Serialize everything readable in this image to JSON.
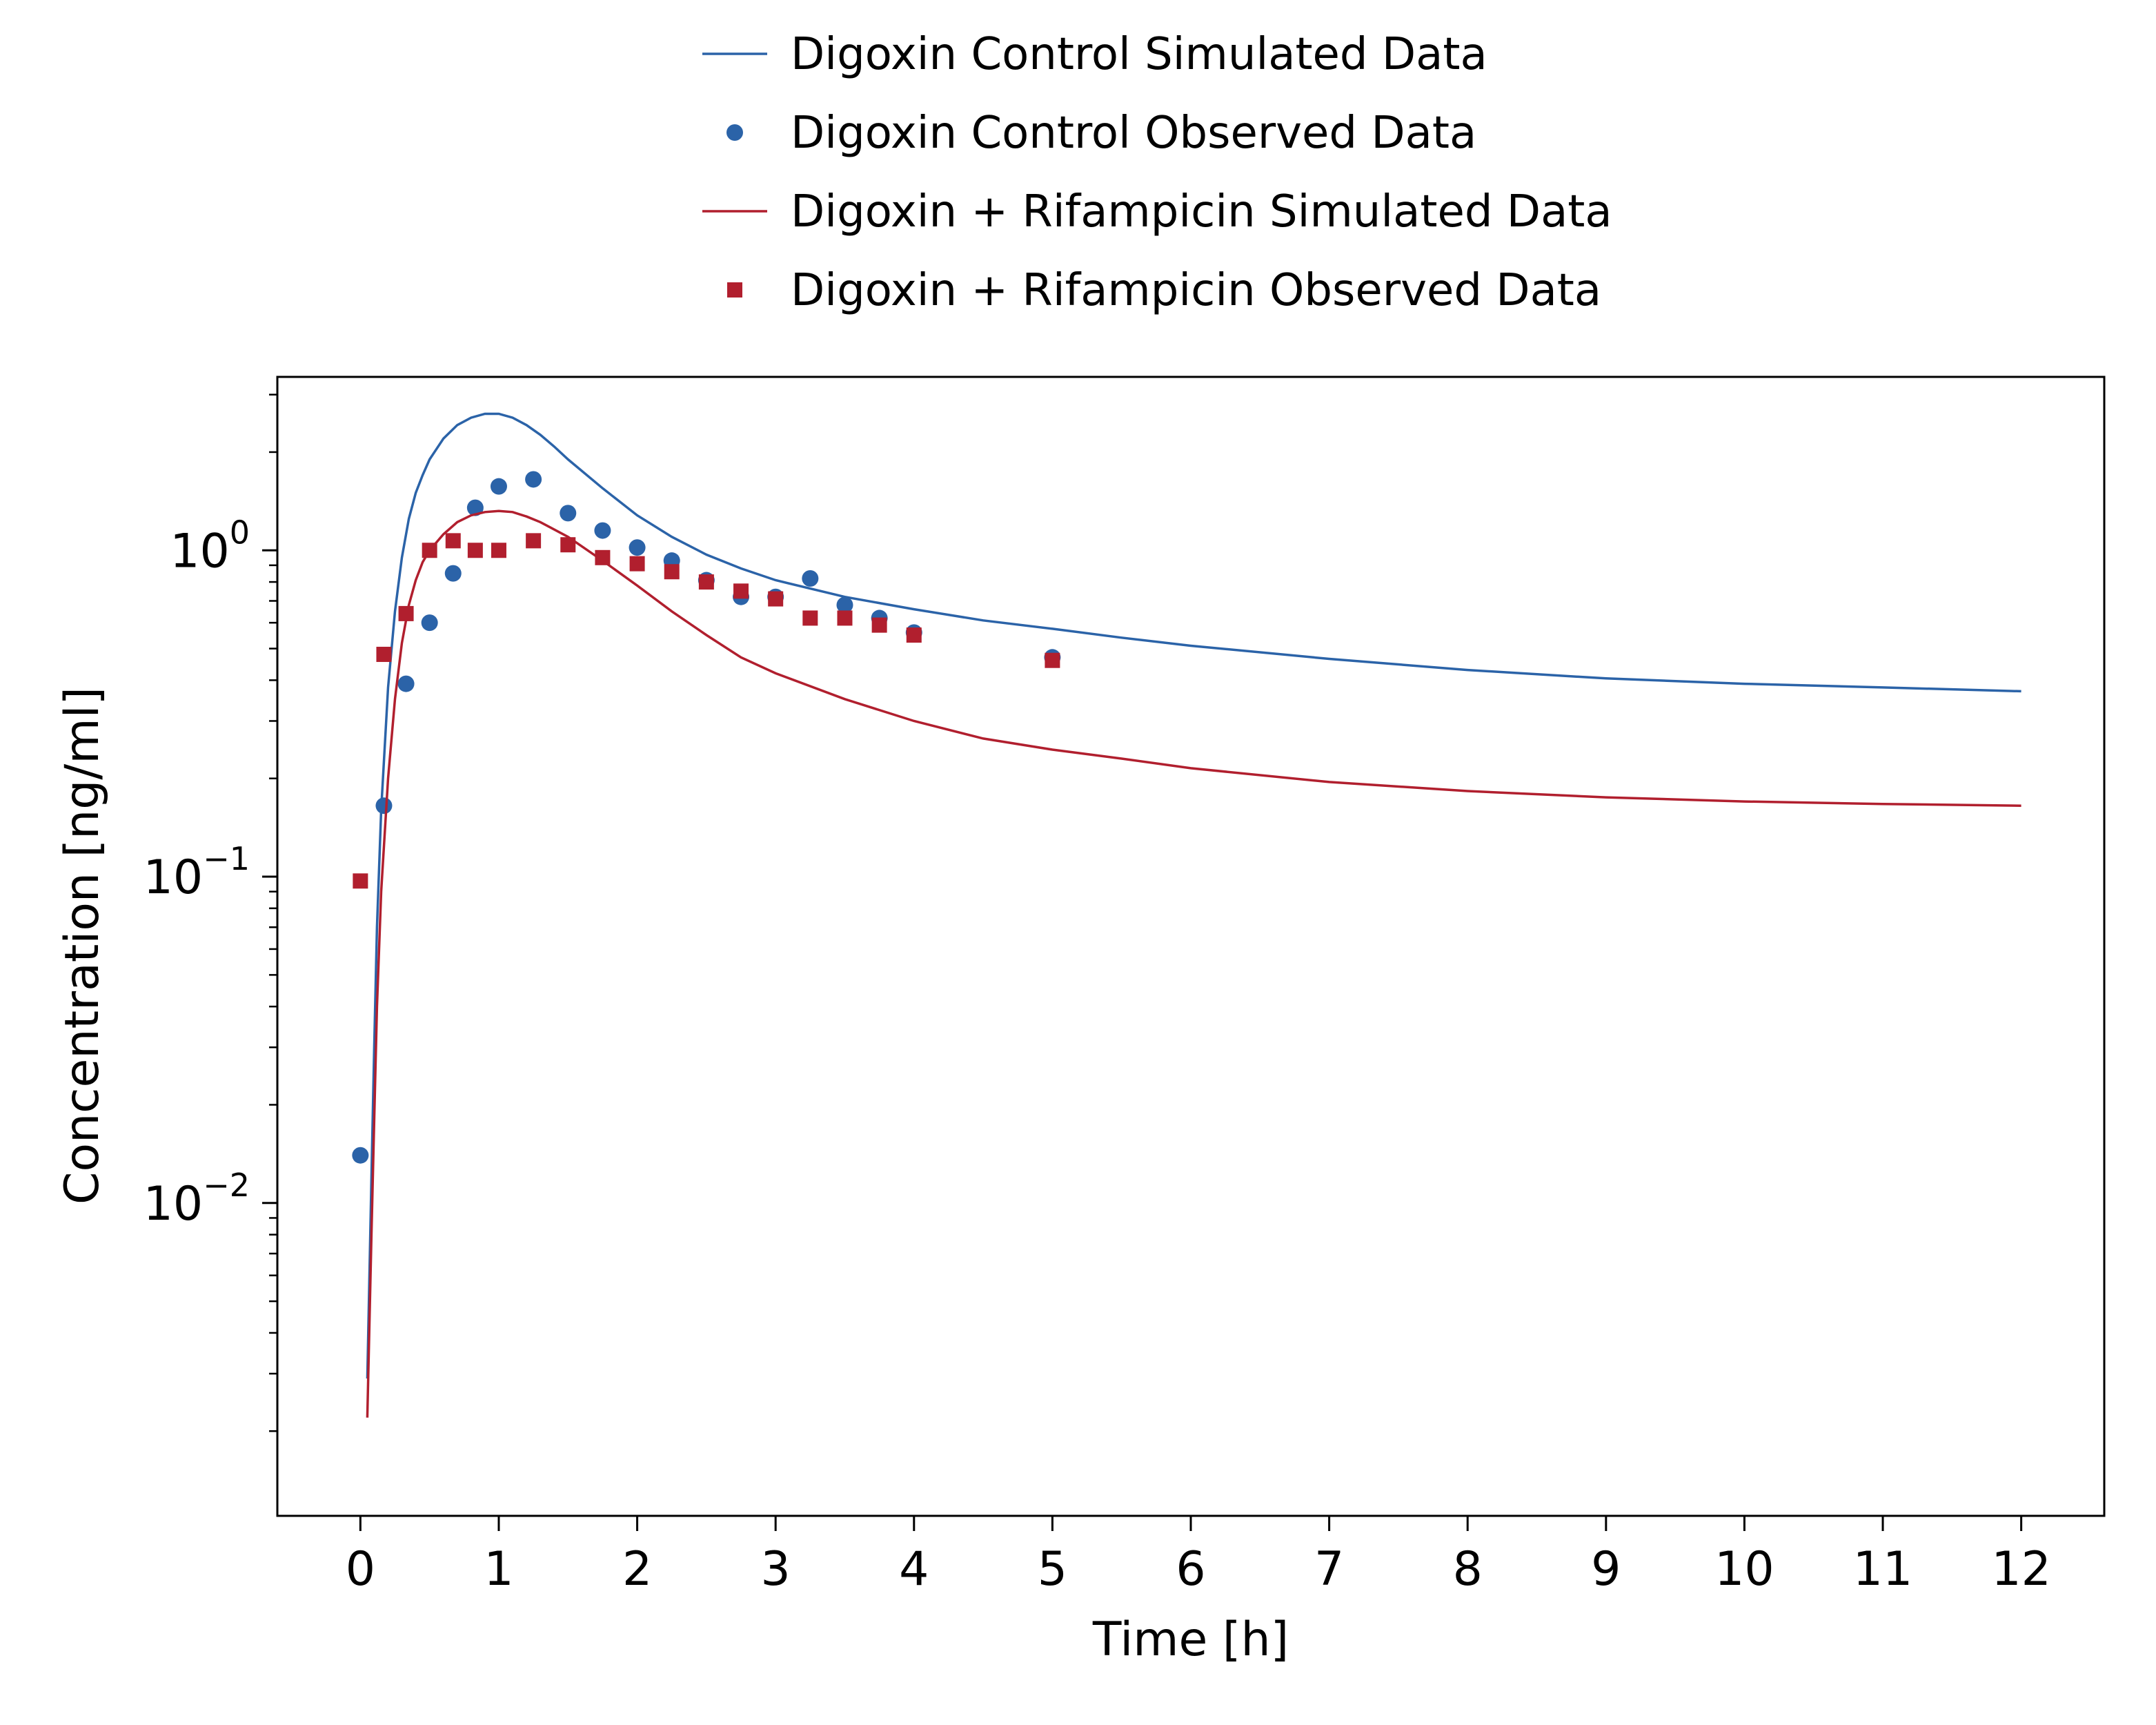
{
  "chart_data": {
    "type": "line",
    "title": "",
    "xlabel": "Time [h]",
    "ylabel": "Concentration [ng/ml]",
    "xlim": [
      -0.6,
      12.6
    ],
    "ylim": [
      0.0011,
      3.4
    ],
    "y_scale": "log",
    "grid": false,
    "legend_position": "top-center",
    "x_ticks": [
      0,
      1,
      2,
      3,
      4,
      5,
      6,
      7,
      8,
      9,
      10,
      11,
      12
    ],
    "x_tick_labels": [
      "0",
      "1",
      "2",
      "3",
      "4",
      "5",
      "6",
      "7",
      "8",
      "9",
      "10",
      "11",
      "12"
    ],
    "y_ticks": [
      0.01,
      0.1,
      1
    ],
    "y_tick_labels": [
      {
        "base": "10",
        "exp": "−2"
      },
      {
        "base": "10",
        "exp": "−1"
      },
      {
        "base": "10",
        "exp": "0"
      }
    ],
    "series": [
      {
        "name": "Digoxin Control Simulated Data",
        "kind": "line",
        "color": "#2b63a8",
        "x": [
          0.05,
          0.08,
          0.1,
          0.12,
          0.15,
          0.2,
          0.25,
          0.3,
          0.35,
          0.4,
          0.45,
          0.5,
          0.6,
          0.7,
          0.8,
          0.9,
          1.0,
          1.1,
          1.2,
          1.3,
          1.4,
          1.5,
          1.75,
          2.0,
          2.25,
          2.5,
          2.75,
          3.0,
          3.5,
          4.0,
          4.5,
          5.0,
          5.5,
          6.0,
          7.0,
          8.0,
          9.0,
          10.0,
          11.0,
          12.0
        ],
        "y": [
          0.0029,
          0.012,
          0.03,
          0.07,
          0.16,
          0.38,
          0.65,
          0.95,
          1.25,
          1.5,
          1.7,
          1.9,
          2.2,
          2.42,
          2.55,
          2.62,
          2.62,
          2.55,
          2.42,
          2.26,
          2.08,
          1.9,
          1.55,
          1.28,
          1.1,
          0.97,
          0.88,
          0.81,
          0.72,
          0.66,
          0.61,
          0.575,
          0.54,
          0.51,
          0.465,
          0.43,
          0.405,
          0.39,
          0.38,
          0.37
        ]
      },
      {
        "name": "Digoxin Control Observed Data",
        "kind": "scatter",
        "marker": "circle",
        "color": "#2b63a8",
        "x": [
          0.0,
          0.17,
          0.33,
          0.5,
          0.67,
          0.83,
          1.0,
          1.25,
          1.5,
          1.75,
          2.0,
          2.25,
          2.5,
          2.75,
          3.0,
          3.25,
          3.5,
          3.75,
          4.0,
          5.0
        ],
        "y": [
          0.014,
          0.165,
          0.39,
          0.6,
          0.85,
          1.35,
          1.57,
          1.65,
          1.3,
          1.15,
          1.02,
          0.93,
          0.81,
          0.72,
          0.72,
          0.82,
          0.68,
          0.62,
          0.56,
          0.47
        ]
      },
      {
        "name": "Digoxin + Rifampicin Simulated Data",
        "kind": "line",
        "color": "#b11f2e",
        "x": [
          0.05,
          0.08,
          0.1,
          0.12,
          0.15,
          0.2,
          0.25,
          0.3,
          0.35,
          0.4,
          0.45,
          0.5,
          0.6,
          0.7,
          0.8,
          0.9,
          1.0,
          1.1,
          1.2,
          1.3,
          1.5,
          1.75,
          2.0,
          2.25,
          2.5,
          2.75,
          3.0,
          3.5,
          4.0,
          4.5,
          5.0,
          5.5,
          6.0,
          7.0,
          8.0,
          9.0,
          10.0,
          11.0,
          12.0
        ],
        "y": [
          0.0022,
          0.008,
          0.018,
          0.04,
          0.09,
          0.2,
          0.35,
          0.52,
          0.68,
          0.81,
          0.92,
          1.0,
          1.12,
          1.22,
          1.28,
          1.31,
          1.32,
          1.31,
          1.27,
          1.22,
          1.1,
          0.93,
          0.78,
          0.65,
          0.55,
          0.47,
          0.42,
          0.35,
          0.3,
          0.265,
          0.245,
          0.23,
          0.215,
          0.195,
          0.183,
          0.175,
          0.17,
          0.167,
          0.165
        ]
      },
      {
        "name": "Digoxin + Rifampicin Observed Data",
        "kind": "scatter",
        "marker": "square",
        "color": "#b11f2e",
        "x": [
          0.0,
          0.17,
          0.33,
          0.5,
          0.67,
          0.83,
          1.0,
          1.25,
          1.5,
          1.75,
          2.0,
          2.25,
          2.5,
          2.75,
          3.0,
          3.25,
          3.5,
          3.75,
          4.0,
          5.0
        ],
        "y": [
          0.097,
          0.48,
          0.64,
          1.0,
          1.07,
          1.0,
          1.0,
          1.07,
          1.04,
          0.95,
          0.91,
          0.86,
          0.8,
          0.75,
          0.71,
          0.62,
          0.62,
          0.59,
          0.55,
          0.46
        ]
      }
    ]
  }
}
